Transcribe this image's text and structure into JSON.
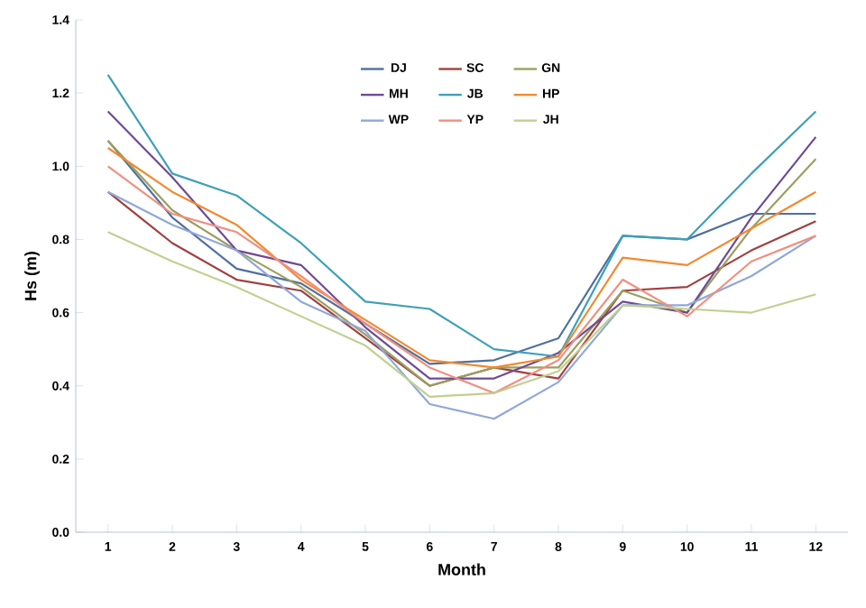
{
  "chart_data": {
    "type": "line",
    "xlabel": "Month",
    "ylabel": "Hs (m)",
    "categories": [
      "1",
      "2",
      "3",
      "4",
      "5",
      "6",
      "7",
      "8",
      "9",
      "10",
      "11",
      "12"
    ],
    "ylim": [
      0,
      1.4
    ],
    "yticks": [
      {
        "value": 0,
        "label": "0.0"
      },
      {
        "value": 0.2,
        "label": "0.2"
      },
      {
        "value": 0.4,
        "label": "0.4"
      },
      {
        "value": 0.6,
        "label": "0.6"
      },
      {
        "value": 0.8,
        "label": "0.8"
      },
      {
        "value": 1.0,
        "label": "1.0"
      },
      {
        "value": 1.2,
        "label": "1.2"
      },
      {
        "value": 1.4,
        "label": "1.4"
      }
    ],
    "grid": false,
    "legend": "top",
    "marker": "none",
    "series": [
      {
        "name": "DJ",
        "color": "#4f6f9f",
        "values": [
          1.07,
          0.86,
          0.72,
          0.68,
          0.57,
          0.46,
          0.47,
          0.53,
          0.81,
          0.8,
          0.87,
          0.87
        ]
      },
      {
        "name": "SC",
        "color": "#a0403f",
        "values": [
          0.93,
          0.79,
          0.69,
          0.66,
          0.53,
          0.4,
          0.45,
          0.42,
          0.66,
          0.67,
          0.77,
          0.85
        ]
      },
      {
        "name": "GN",
        "color": "#9aa060",
        "values": [
          1.07,
          0.88,
          0.77,
          0.67,
          0.54,
          0.4,
          0.45,
          0.45,
          0.66,
          0.6,
          0.83,
          1.02
        ]
      },
      {
        "name": "MH",
        "color": "#6f4a94",
        "values": [
          1.15,
          0.97,
          0.77,
          0.73,
          0.56,
          0.42,
          0.42,
          0.49,
          0.63,
          0.6,
          0.86,
          1.08
        ]
      },
      {
        "name": "JB",
        "color": "#3fa0b8",
        "values": [
          1.25,
          0.98,
          0.92,
          0.79,
          0.63,
          0.61,
          0.5,
          0.48,
          0.81,
          0.8,
          0.98,
          1.15
        ]
      },
      {
        "name": "HP",
        "color": "#f08a30",
        "values": [
          1.05,
          0.93,
          0.84,
          0.69,
          0.58,
          0.47,
          0.45,
          0.48,
          0.75,
          0.73,
          0.83,
          0.93
        ]
      },
      {
        "name": "WP",
        "color": "#90a8d8",
        "values": [
          0.93,
          0.84,
          0.77,
          0.63,
          0.55,
          0.35,
          0.31,
          0.41,
          0.62,
          0.62,
          0.7,
          0.81
        ]
      },
      {
        "name": "YP",
        "color": "#f09080",
        "values": [
          1.0,
          0.87,
          0.82,
          0.7,
          0.57,
          0.45,
          0.38,
          0.47,
          0.69,
          0.59,
          0.74,
          0.81
        ]
      },
      {
        "name": "JH",
        "color": "#c0d090",
        "values": [
          0.82,
          0.74,
          0.67,
          0.59,
          0.51,
          0.37,
          0.38,
          0.44,
          0.62,
          0.61,
          0.6,
          0.65
        ]
      }
    ]
  }
}
